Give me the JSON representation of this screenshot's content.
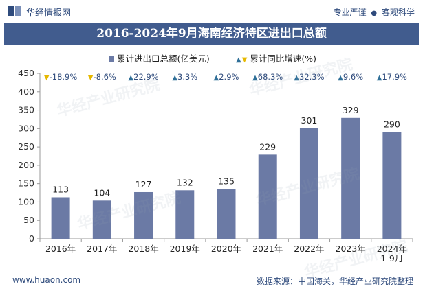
{
  "header": {
    "brand": "华经情报网",
    "tagline_left": "专业严谨",
    "tagline_dot": "●",
    "tagline_right": "客观科学",
    "title": "2016-2024年9月海南经济特区进出口总额"
  },
  "legend": {
    "bar_label": "累计进出口总额(亿美元)",
    "growth_label": "累计同比增速(%)"
  },
  "chart_data": {
    "type": "bar",
    "title": "2016-2024年9月海南经济特区进出口总额",
    "categories": [
      "2016年",
      "2017年",
      "2018年",
      "2019年",
      "2020年",
      "2021年",
      "2022年",
      "2023年",
      "2024年\n1-9月"
    ],
    "series": [
      {
        "name": "累计进出口总额(亿美元)",
        "values": [
          113,
          104,
          127,
          132,
          135,
          229,
          301,
          329,
          290
        ],
        "color": "#6b7aa5"
      }
    ],
    "growth": {
      "name": "累计同比增速(%)",
      "labels": [
        "-18.9%",
        "-8.6%",
        "22.9%",
        "3.3%",
        "2.9%",
        "68.3%",
        "32.3%",
        "9.6%",
        "17.9%"
      ],
      "direction": [
        "down",
        "down",
        "up",
        "up",
        "up",
        "up",
        "up",
        "up",
        "up"
      ],
      "up_color": "#2f6f98",
      "down_color": "#e6b800"
    },
    "y_ticks": [
      0,
      50,
      100,
      150,
      200,
      250,
      300,
      350,
      400,
      450
    ],
    "ylim": [
      0,
      450
    ],
    "xlabel": "",
    "ylabel": ""
  },
  "footer": {
    "website": "www.huaon.com",
    "source": "数据来源：中国海关，华经产业研究院整理"
  },
  "watermark": "华经产业研究院"
}
